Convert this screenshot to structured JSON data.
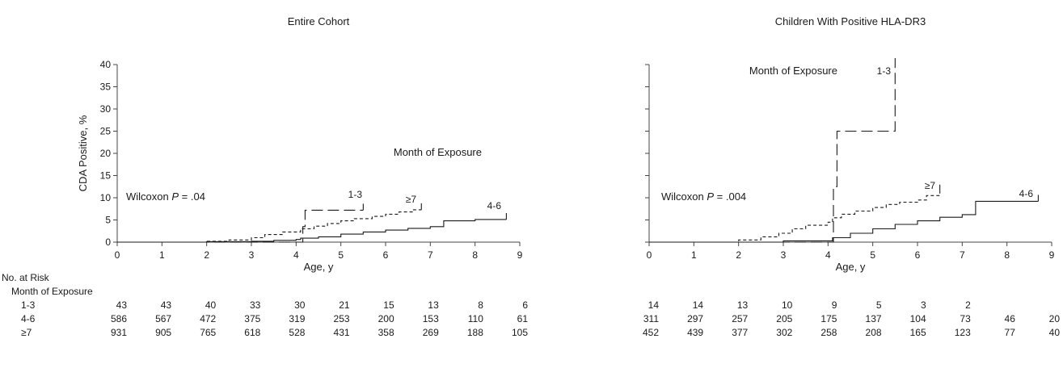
{
  "chart_data": [
    {
      "type": "line",
      "step": true,
      "title": "Entire Cohort",
      "xlabel": "Age, y",
      "ylabel": "CDA Positive, %",
      "xlim": [
        0,
        9
      ],
      "ylim": [
        0,
        40
      ],
      "xticks": [
        "0",
        "1",
        "2",
        "3",
        "4",
        "5",
        "6",
        "7",
        "8",
        "9"
      ],
      "yticks": [
        "0",
        "5",
        "10",
        "15",
        "20",
        "25",
        "30",
        "35",
        "40"
      ],
      "show_y_tick_labels": true,
      "stat_prefix": "Wilcoxon ",
      "stat_p": "P",
      "stat_value": " = .04",
      "legend_title": "Month of Exposure",
      "series": [
        {
          "name": "1-3",
          "style": "longdash",
          "x": [
            0,
            4.1,
            4.15,
            4.2,
            5.5
          ],
          "y": [
            0,
            0,
            3.5,
            7.2,
            7.2
          ]
        },
        {
          "name": "4-6",
          "style": "solid",
          "x": [
            0,
            2.0,
            3.0,
            3.5,
            4.0,
            4.1,
            4.5,
            5.0,
            5.5,
            6.0,
            6.5,
            7.0,
            7.3,
            8.0,
            8.7
          ],
          "y": [
            0,
            0.1,
            0.2,
            0.4,
            0.6,
            0.9,
            1.2,
            1.8,
            2.3,
            2.7,
            3.1,
            3.5,
            4.8,
            5.1,
            5.1
          ]
        },
        {
          "name": "≥7",
          "style": "shortdash",
          "x": [
            0,
            2.0,
            2.5,
            3.0,
            3.3,
            3.7,
            4.1,
            4.4,
            4.7,
            5.0,
            5.3,
            5.7,
            6.0,
            6.3,
            6.6,
            6.8
          ],
          "y": [
            0,
            0.2,
            0.5,
            1.0,
            1.7,
            2.3,
            3.0,
            3.6,
            4.2,
            4.8,
            5.3,
            5.8,
            6.3,
            6.8,
            7.3,
            7.3
          ]
        }
      ],
      "risk_table": {
        "title": "No. at Risk",
        "subtitle": "Month of Exposure",
        "rows": [
          {
            "label": "1-3",
            "values": [
              "43",
              "43",
              "40",
              "33",
              "30",
              "21",
              "15",
              "13",
              "8",
              "6"
            ]
          },
          {
            "label": "4-6",
            "values": [
              "586",
              "567",
              "472",
              "375",
              "319",
              "253",
              "200",
              "153",
              "110",
              "61"
            ]
          },
          {
            "label": "≥7",
            "values": [
              "931",
              "905",
              "765",
              "618",
              "528",
              "431",
              "358",
              "269",
              "188",
              "105"
            ]
          }
        ]
      }
    },
    {
      "type": "line",
      "step": true,
      "title": "Children With Positive HLA-DR3",
      "xlabel": "Age, y",
      "ylabel": "",
      "xlim": [
        0,
        9
      ],
      "ylim": [
        0,
        40
      ],
      "xticks": [
        "0",
        "1",
        "2",
        "3",
        "4",
        "5",
        "6",
        "7",
        "8",
        "9"
      ],
      "yticks": [
        "0",
        "5",
        "10",
        "15",
        "20",
        "25",
        "30",
        "35",
        "40"
      ],
      "show_y_tick_labels": false,
      "stat_prefix": "Wilcoxon ",
      "stat_p": "P",
      "stat_value": " = .004",
      "legend_title": "Month of Exposure",
      "series": [
        {
          "name": "1-3",
          "style": "longdash",
          "x": [
            0,
            4.1,
            4.12,
            4.2,
            5.5
          ],
          "y": [
            0,
            0,
            12.5,
            25,
            40
          ]
        },
        {
          "name": "4-6",
          "style": "solid",
          "x": [
            0,
            3.0,
            4.1,
            4.5,
            5.0,
            5.5,
            6.0,
            6.5,
            7.0,
            7.3,
            8.7
          ],
          "y": [
            0,
            0.3,
            1.0,
            2.0,
            3.0,
            4.0,
            4.8,
            5.6,
            6.2,
            9.2,
            9.2
          ]
        },
        {
          "name": "≥7",
          "style": "shortdash",
          "x": [
            0,
            2.0,
            2.5,
            2.9,
            3.2,
            3.5,
            4.0,
            4.1,
            4.3,
            4.6,
            5.0,
            5.3,
            5.6,
            6.0,
            6.2,
            6.5
          ],
          "y": [
            0,
            0.5,
            1.2,
            2.0,
            3.0,
            3.8,
            4.5,
            5.5,
            6.3,
            7.0,
            7.8,
            8.5,
            9.0,
            9.5,
            10.5,
            11.5
          ]
        }
      ],
      "risk_table": {
        "rows": [
          {
            "label": "1-3",
            "values": [
              "14",
              "14",
              "13",
              "10",
              "9",
              "5",
              "3",
              "2",
              "",
              ""
            ]
          },
          {
            "label": "4-6",
            "values": [
              "311",
              "297",
              "257",
              "205",
              "175",
              "137",
              "104",
              "73",
              "46",
              "20"
            ]
          },
          {
            "label": "≥7",
            "values": [
              "452",
              "439",
              "377",
              "302",
              "258",
              "208",
              "165",
              "123",
              "77",
              "40"
            ]
          }
        ]
      }
    }
  ]
}
